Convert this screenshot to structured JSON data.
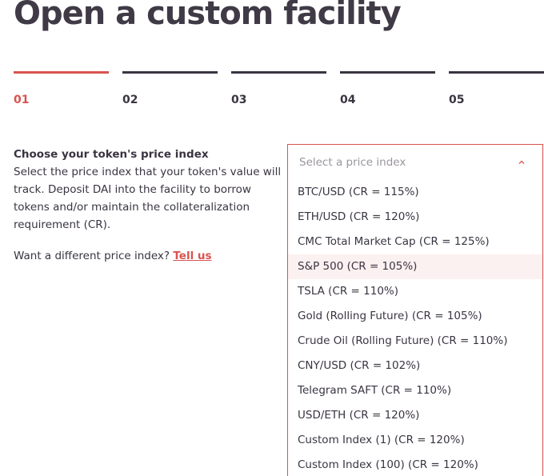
{
  "page": {
    "title": "Open a custom facility"
  },
  "steps": [
    {
      "label": "01",
      "active": true
    },
    {
      "label": "02",
      "active": false
    },
    {
      "label": "03",
      "active": false
    },
    {
      "label": "04",
      "active": false
    },
    {
      "label": "05",
      "active": false
    }
  ],
  "colors": {
    "accent": "#d9534f",
    "text": "#3a3441",
    "muted": "#9a959e",
    "hover": "#fcf1f1"
  },
  "form": {
    "title": "Choose your token's price index",
    "description": "Select the price index that your token's value will track. Deposit DAI into the facility to borrow tokens and/or maintain the collateralization requirement (CR).",
    "alt_prompt": "Want a different price index?",
    "alt_link": "Tell us"
  },
  "select": {
    "placeholder": "Select a price index",
    "icon": "chevron-up-icon",
    "hovered_index": 3,
    "options": [
      "BTC/USD (CR = 115%)",
      "ETH/USD (CR = 120%)",
      "CMC Total Market Cap (CR = 125%)",
      "S&P 500 (CR = 105%)",
      "TSLA (CR = 110%)",
      "Gold (Rolling Future) (CR = 105%)",
      "Crude Oil (Rolling Future) (CR = 110%)",
      "CNY/USD (CR = 102%)",
      "Telegram SAFT (CR = 110%)",
      "USD/ETH (CR = 120%)",
      "Custom Index (1) (CR = 120%)",
      "Custom Index (100) (CR = 120%)"
    ]
  }
}
